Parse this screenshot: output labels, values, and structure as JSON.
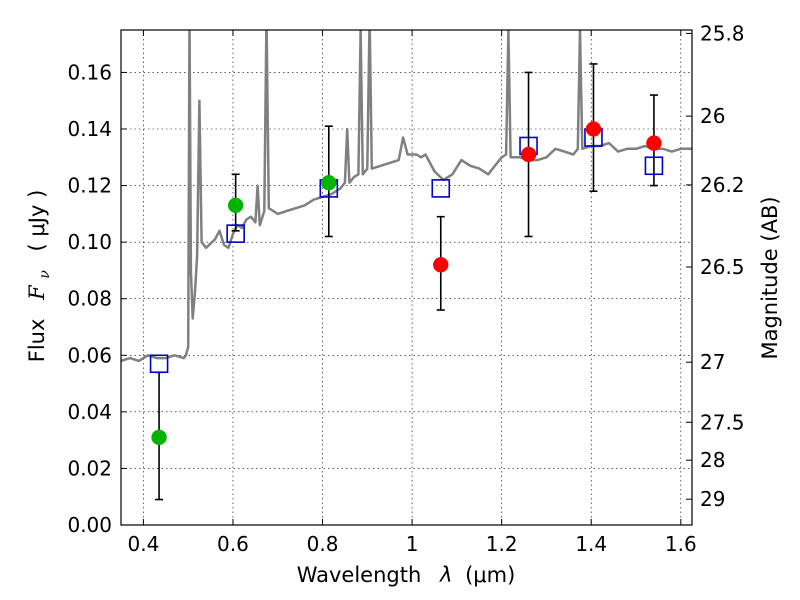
{
  "chart_data": {
    "type": "scatter",
    "xlabel_text": "Wavelength",
    "xlabel_symbol": "λ",
    "xlabel_unit": "(μm)",
    "ylabel_text": "Flux",
    "ylabel_symbol": "F",
    "ylabel_subscript": "ν",
    "ylabel_unit": "( μJy )",
    "y2label": "Magnitude (AB)",
    "xlim": [
      0.35,
      1.625
    ],
    "ylim": [
      0.0,
      0.175
    ],
    "xticks": [
      0.4,
      0.6,
      0.8,
      1.0,
      1.2,
      1.4,
      1.6
    ],
    "xtick_labels": [
      "0.4",
      "0.6",
      "0.8",
      "1",
      "1.2",
      "1.4",
      "1.6"
    ],
    "yticks": [
      0.0,
      0.02,
      0.04,
      0.06,
      0.08,
      0.1,
      0.12,
      0.14,
      0.16
    ],
    "ytick_labels": [
      "0.00",
      "0.02",
      "0.04",
      "0.06",
      "0.08",
      "0.10",
      "0.12",
      "0.14",
      "0.16"
    ],
    "y2ticks": [
      {
        "mag": 25.8,
        "label": "25.8"
      },
      {
        "mag": 26.0,
        "label": "26"
      },
      {
        "mag": 26.2,
        "label": "26.2"
      },
      {
        "mag": 26.5,
        "label": "26.5"
      },
      {
        "mag": 27.0,
        "label": "27"
      },
      {
        "mag": 27.5,
        "label": "27.5"
      },
      {
        "mag": 28.0,
        "label": "28"
      },
      {
        "mag": 29.0,
        "label": "29"
      }
    ],
    "grid": true,
    "colors": {
      "green": "#00b300",
      "red": "#ff0000",
      "blue_square": "#0000cc",
      "spectrum": "#808080",
      "errorbar": "#000000"
    },
    "observed_points": [
      {
        "x": 0.435,
        "y": 0.031,
        "err_lo": 0.009,
        "err_hi": 0.054,
        "color": "green"
      },
      {
        "x": 0.606,
        "y": 0.113,
        "err_lo": 0.104,
        "err_hi": 0.124,
        "color": "green"
      },
      {
        "x": 0.814,
        "y": 0.121,
        "err_lo": 0.102,
        "err_hi": 0.141,
        "color": "green"
      },
      {
        "x": 1.064,
        "y": 0.092,
        "err_lo": 0.076,
        "err_hi": 0.109,
        "color": "red"
      },
      {
        "x": 1.26,
        "y": 0.131,
        "err_lo": 0.102,
        "err_hi": 0.16,
        "color": "red"
      },
      {
        "x": 1.405,
        "y": 0.14,
        "err_lo": 0.118,
        "err_hi": 0.163,
        "color": "red"
      },
      {
        "x": 1.54,
        "y": 0.135,
        "err_lo": 0.12,
        "err_hi": 0.152,
        "color": "red"
      }
    ],
    "model_points": [
      {
        "x": 0.435,
        "y": 0.057
      },
      {
        "x": 0.606,
        "y": 0.103
      },
      {
        "x": 0.814,
        "y": 0.119
      },
      {
        "x": 1.064,
        "y": 0.119
      },
      {
        "x": 1.26,
        "y": 0.134
      },
      {
        "x": 1.405,
        "y": 0.137
      },
      {
        "x": 1.54,
        "y": 0.127
      }
    ],
    "spectrum": [
      [
        0.35,
        0.058
      ],
      [
        0.37,
        0.059
      ],
      [
        0.39,
        0.058
      ],
      [
        0.41,
        0.06
      ],
      [
        0.43,
        0.059
      ],
      [
        0.45,
        0.059
      ],
      [
        0.47,
        0.06
      ],
      [
        0.49,
        0.059
      ],
      [
        0.495,
        0.06
      ],
      [
        0.5,
        0.063
      ],
      [
        0.503,
        0.18
      ],
      [
        0.506,
        0.09
      ],
      [
        0.51,
        0.073
      ],
      [
        0.515,
        0.082
      ],
      [
        0.52,
        0.095
      ],
      [
        0.525,
        0.15
      ],
      [
        0.53,
        0.1
      ],
      [
        0.54,
        0.098
      ],
      [
        0.56,
        0.101
      ],
      [
        0.57,
        0.104
      ],
      [
        0.58,
        0.099
      ],
      [
        0.59,
        0.098
      ],
      [
        0.6,
        0.103
      ],
      [
        0.61,
        0.106
      ],
      [
        0.62,
        0.105
      ],
      [
        0.63,
        0.108
      ],
      [
        0.64,
        0.109
      ],
      [
        0.65,
        0.107
      ],
      [
        0.655,
        0.12
      ],
      [
        0.66,
        0.106
      ],
      [
        0.67,
        0.111
      ],
      [
        0.675,
        0.18
      ],
      [
        0.68,
        0.112
      ],
      [
        0.69,
        0.111
      ],
      [
        0.7,
        0.11
      ],
      [
        0.72,
        0.111
      ],
      [
        0.74,
        0.112
      ],
      [
        0.76,
        0.113
      ],
      [
        0.78,
        0.115
      ],
      [
        0.8,
        0.116
      ],
      [
        0.82,
        0.117
      ],
      [
        0.84,
        0.119
      ],
      [
        0.85,
        0.121
      ],
      [
        0.855,
        0.14
      ],
      [
        0.86,
        0.121
      ],
      [
        0.87,
        0.123
      ],
      [
        0.88,
        0.124
      ],
      [
        0.885,
        0.175
      ],
      [
        0.89,
        0.124
      ],
      [
        0.9,
        0.126
      ],
      [
        0.905,
        0.18
      ],
      [
        0.91,
        0.126
      ],
      [
        0.93,
        0.127
      ],
      [
        0.95,
        0.128
      ],
      [
        0.97,
        0.129
      ],
      [
        0.98,
        0.137
      ],
      [
        0.99,
        0.131
      ],
      [
        1.0,
        0.131
      ],
      [
        1.01,
        0.131
      ],
      [
        1.02,
        0.13
      ],
      [
        1.03,
        0.131
      ],
      [
        1.05,
        0.125
      ],
      [
        1.07,
        0.122
      ],
      [
        1.09,
        0.124
      ],
      [
        1.11,
        0.129
      ],
      [
        1.13,
        0.127
      ],
      [
        1.15,
        0.126
      ],
      [
        1.17,
        0.124
      ],
      [
        1.19,
        0.128
      ],
      [
        1.2,
        0.13
      ],
      [
        1.21,
        0.131
      ],
      [
        1.215,
        0.175
      ],
      [
        1.22,
        0.13
      ],
      [
        1.24,
        0.13
      ],
      [
        1.26,
        0.129
      ],
      [
        1.28,
        0.129
      ],
      [
        1.3,
        0.13
      ],
      [
        1.32,
        0.133
      ],
      [
        1.34,
        0.132
      ],
      [
        1.36,
        0.131
      ],
      [
        1.37,
        0.133
      ],
      [
        1.375,
        0.175
      ],
      [
        1.38,
        0.133
      ],
      [
        1.4,
        0.134
      ],
      [
        1.42,
        0.134
      ],
      [
        1.44,
        0.135
      ],
      [
        1.46,
        0.132
      ],
      [
        1.48,
        0.133
      ],
      [
        1.5,
        0.133
      ],
      [
        1.52,
        0.134
      ],
      [
        1.54,
        0.133
      ],
      [
        1.56,
        0.133
      ],
      [
        1.58,
        0.132
      ],
      [
        1.6,
        0.133
      ],
      [
        1.625,
        0.133
      ]
    ]
  }
}
